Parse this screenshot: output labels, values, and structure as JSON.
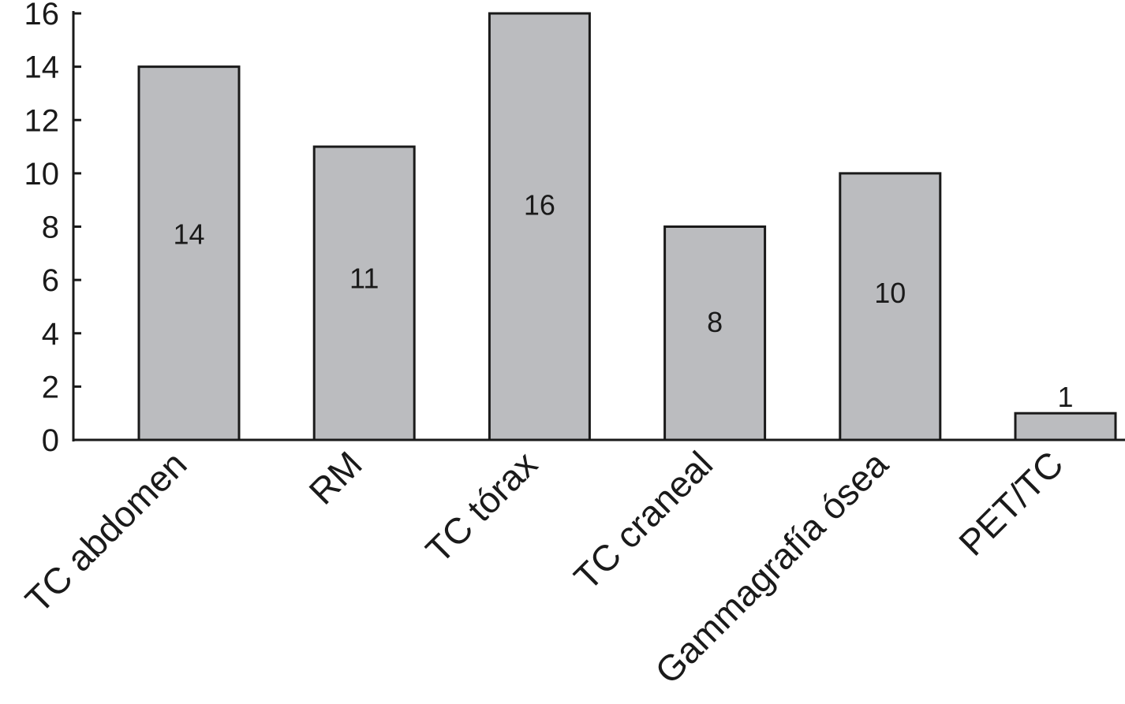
{
  "chart_data": {
    "type": "bar",
    "categories": [
      "TC abdomen",
      "RM",
      "TC tórax",
      "TC craneal",
      "Gammagrafía ósea",
      "PET/TC"
    ],
    "values": [
      14,
      11,
      16,
      8,
      10,
      1
    ],
    "data_labels": [
      "14",
      "11",
      "16",
      "8",
      "10",
      "1"
    ],
    "title": "",
    "xlabel": "",
    "ylabel": "",
    "ylim": [
      0,
      16
    ],
    "yticks": [
      0,
      2,
      4,
      6,
      8,
      10,
      12,
      14,
      16
    ],
    "ytick_labels": [
      "0",
      "2",
      "4",
      "6",
      "8",
      "10",
      "12",
      "14",
      "16"
    ],
    "grid": false,
    "legend": "none",
    "bar_color": "#bbbcbf",
    "outline_color": "#1a1a1a"
  }
}
